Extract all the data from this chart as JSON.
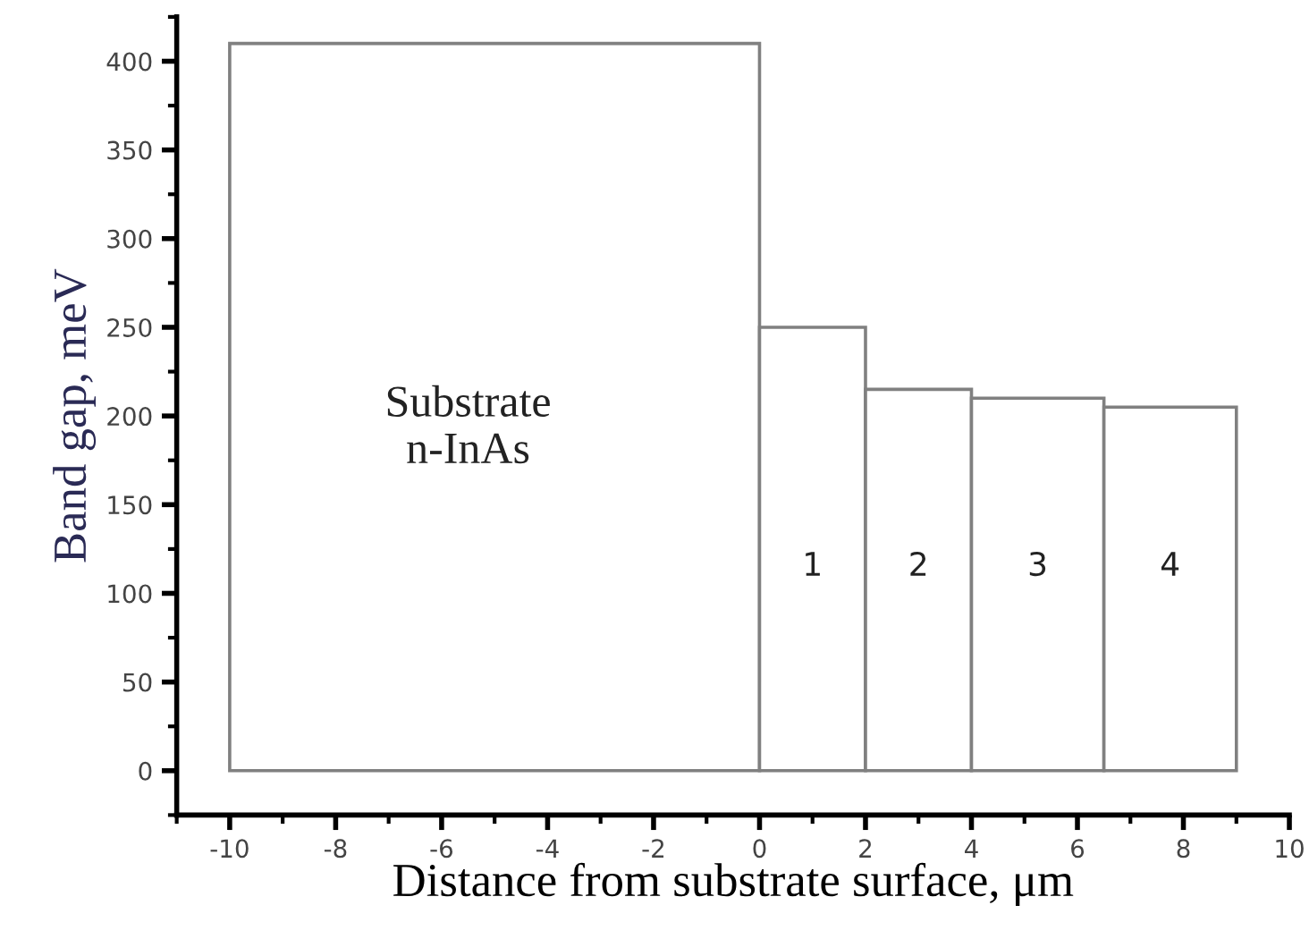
{
  "chart_data": {
    "type": "histogram",
    "xlabel": "Distance from substrate surface, μm",
    "ylabel": "Band gap, meV",
    "bins": [
      -10,
      0,
      2,
      4,
      6.5,
      9
    ],
    "values": [
      410,
      250,
      215,
      210,
      205
    ],
    "color": "#ffffff",
    "xlim": [
      -11,
      10
    ],
    "ylim": [
      -25,
      425
    ],
    "xticks": [
      -10,
      -8,
      -6,
      -4,
      -2,
      0,
      2,
      4,
      6,
      8,
      10
    ],
    "yticks": [
      0,
      50,
      100,
      150,
      200,
      250,
      300,
      350,
      400
    ],
    "grid": false,
    "annotations": [
      "Substrate\nn-InAs",
      "1",
      "2",
      "3",
      "4"
    ]
  }
}
